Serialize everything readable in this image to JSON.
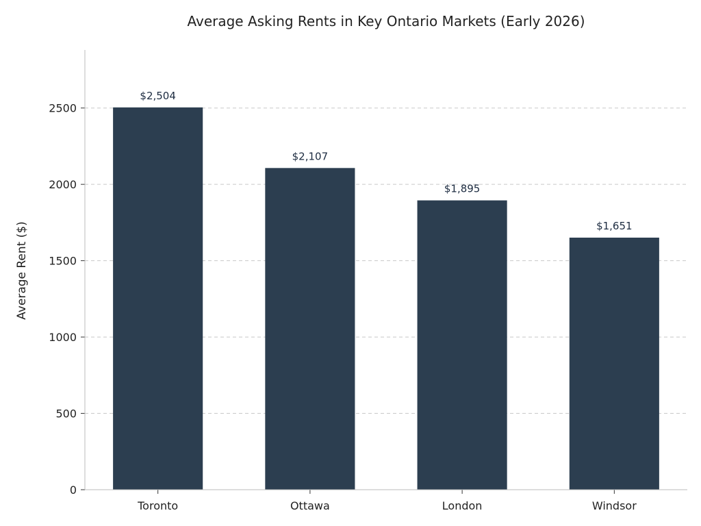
{
  "chart_data": {
    "type": "bar",
    "title": "Average Asking Rents in Key Ontario Markets (Early 2026)",
    "xlabel": "",
    "ylabel": "Average Rent ($)",
    "categories": [
      "Toronto",
      "Ottawa",
      "London",
      "Windsor"
    ],
    "values": [
      2504,
      2107,
      1895,
      1651
    ],
    "data_labels": [
      "$2,504",
      "$2,107",
      "$1,895",
      "$1,651"
    ],
    "yticks": [
      0,
      500,
      1000,
      1500,
      2000,
      2500
    ],
    "ylim": [
      0,
      2880
    ],
    "grid": "horizontal dashed",
    "bar_color": "#2c3e50",
    "label_color": "#1c2b40",
    "grid_color": "#c8c8c8"
  }
}
